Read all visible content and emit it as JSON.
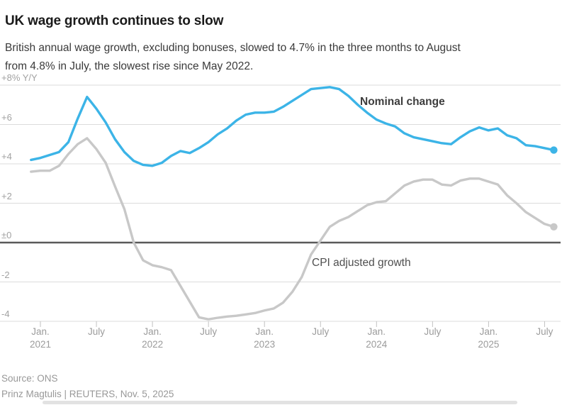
{
  "header": {
    "title": "UK wage growth continues to slow",
    "subtitle": "British annual wage growth, excluding bonuses, slowed to 4.7% in the three months to August from 4.8% in July, the slowest rise since May 2022."
  },
  "chart_data": {
    "type": "line",
    "title": "UK wage growth continues to slow",
    "xlabel": "",
    "ylabel": "+8% Y/Y",
    "ylim": [
      -4.6,
      8.6
    ],
    "grid": true,
    "legend_position": "inline-annotations",
    "y_axis": {
      "tick_labels": [
        "+8% Y/Y",
        "+6",
        "+4",
        "+2",
        "±0",
        "-2",
        "-4"
      ],
      "tick_values": [
        8,
        6,
        4,
        2,
        0,
        -2,
        -4
      ]
    },
    "x_axis": {
      "ticks": [
        {
          "month": "Jan.",
          "year": "2021"
        },
        {
          "month": "July",
          "year": ""
        },
        {
          "month": "Jan.",
          "year": "2022"
        },
        {
          "month": "July",
          "year": ""
        },
        {
          "month": "Jan.",
          "year": "2023"
        },
        {
          "month": "July",
          "year": ""
        },
        {
          "month": "Jan.",
          "year": "2024"
        },
        {
          "month": "July",
          "year": ""
        },
        {
          "month": "Jan.",
          "year": "2025"
        },
        {
          "month": "July",
          "year": ""
        }
      ]
    },
    "x": [
      "2020-12",
      "2021-01",
      "2021-02",
      "2021-03",
      "2021-04",
      "2021-05",
      "2021-06",
      "2021-07",
      "2021-08",
      "2021-09",
      "2021-10",
      "2021-11",
      "2021-12",
      "2022-01",
      "2022-02",
      "2022-03",
      "2022-04",
      "2022-05",
      "2022-06",
      "2022-07",
      "2022-08",
      "2022-09",
      "2022-10",
      "2022-11",
      "2022-12",
      "2023-01",
      "2023-02",
      "2023-03",
      "2023-04",
      "2023-05",
      "2023-06",
      "2023-07",
      "2023-08",
      "2023-09",
      "2023-10",
      "2023-11",
      "2023-12",
      "2024-01",
      "2024-02",
      "2024-03",
      "2024-04",
      "2024-05",
      "2024-06",
      "2024-07",
      "2024-08",
      "2024-09",
      "2024-10",
      "2024-11",
      "2024-12",
      "2025-01",
      "2025-02",
      "2025-03",
      "2025-04",
      "2025-05",
      "2025-06",
      "2025-07",
      "2025-08"
    ],
    "series": [
      {
        "name": "Nominal change",
        "color": "#3cb4e7",
        "end_dot": true,
        "values": [
          4.2,
          4.3,
          4.45,
          4.6,
          5.1,
          6.3,
          7.4,
          6.8,
          6.1,
          5.25,
          4.6,
          4.15,
          3.95,
          3.9,
          4.05,
          4.4,
          4.65,
          4.55,
          4.8,
          5.1,
          5.5,
          5.8,
          6.2,
          6.5,
          6.6,
          6.6,
          6.65,
          6.9,
          7.2,
          7.5,
          7.8,
          7.85,
          7.9,
          7.8,
          7.45,
          7.0,
          6.6,
          6.25,
          6.05,
          5.9,
          5.55,
          5.35,
          5.25,
          5.15,
          5.05,
          5.0,
          5.35,
          5.65,
          5.85,
          5.7,
          5.8,
          5.45,
          5.3,
          4.95,
          4.9,
          4.8,
          4.7
        ]
      },
      {
        "name": "CPI adjusted growth",
        "color": "#c8c8c8",
        "end_dot": true,
        "values": [
          3.6,
          3.65,
          3.65,
          3.9,
          4.5,
          5.0,
          5.3,
          4.75,
          4.05,
          2.85,
          1.7,
          0.0,
          -0.9,
          -1.15,
          -1.25,
          -1.4,
          -2.2,
          -3.0,
          -3.8,
          -3.9,
          -3.82,
          -3.76,
          -3.72,
          -3.65,
          -3.58,
          -3.45,
          -3.35,
          -3.05,
          -2.5,
          -1.75,
          -0.6,
          0.1,
          0.8,
          1.1,
          1.3,
          1.6,
          1.9,
          2.05,
          2.1,
          2.5,
          2.9,
          3.1,
          3.2,
          3.2,
          2.95,
          2.9,
          3.15,
          3.25,
          3.25,
          3.1,
          2.95,
          2.4,
          2.0,
          1.55,
          1.25,
          0.95,
          0.8
        ]
      }
    ],
    "annotations": [
      {
        "text": "Nominal change",
        "bold": true
      },
      {
        "text": "CPI adjusted growth",
        "bold": false
      }
    ]
  },
  "footer": {
    "source": "Source: ONS",
    "byline": "Prinz Magtulis | REUTERS, Nov. 5, 2025"
  },
  "colors": {
    "nominal_line": "#3cb4e7",
    "cpi_line": "#c8c8c8",
    "grid_line": "#dbdbdb",
    "zero_line": "#5a5a5a",
    "tick_mark": "#c2c2c2",
    "axis_text": "#9b9b9b",
    "footer_text": "#989898"
  }
}
